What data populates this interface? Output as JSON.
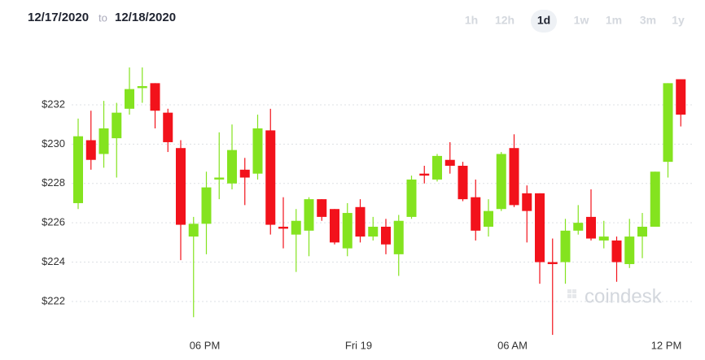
{
  "header": {
    "from": "12/17/2020",
    "to": "to",
    "until": "12/18/2020",
    "ranges": [
      "1h",
      "12h",
      "1d",
      "1w",
      "1m",
      "3m",
      "1y"
    ],
    "selected_range": "1d"
  },
  "chart_data": {
    "type": "candlestick",
    "watermark": "coindesk",
    "categories": [
      null,
      null,
      null,
      null,
      null,
      null,
      null,
      null,
      null,
      null,
      "06 PM",
      null,
      null,
      null,
      null,
      null,
      null,
      null,
      null,
      null,
      null,
      null,
      "Fri 19",
      null,
      null,
      null,
      null,
      null,
      null,
      null,
      null,
      null,
      null,
      null,
      "06 AM",
      null,
      null,
      null,
      null,
      null,
      null,
      null,
      null,
      null,
      null,
      null,
      "12 PM",
      null
    ],
    "open": [
      227.0,
      230.2,
      229.5,
      230.3,
      231.8,
      232.85,
      233.1,
      231.6,
      229.8,
      225.3,
      225.95,
      228.2,
      228.0,
      228.7,
      228.5,
      230.7,
      225.8,
      225.4,
      225.6,
      227.2,
      226.7,
      224.7,
      226.8,
      225.3,
      225.8,
      224.4,
      226.3,
      228.5,
      228.2,
      229.2,
      228.9,
      227.3,
      225.8,
      226.7,
      229.8,
      227.5,
      227.5,
      224.0,
      224.0,
      225.6,
      226.3,
      225.1,
      225.1,
      223.9,
      225.3,
      225.8,
      229.1,
      233.3
    ],
    "high": [
      231.3,
      231.7,
      232.2,
      232.1,
      233.9,
      233.9,
      233.1,
      231.8,
      230.2,
      226.3,
      228.6,
      230.6,
      231.0,
      229.3,
      231.5,
      231.8,
      227.3,
      226.7,
      227.3,
      227.2,
      226.7,
      227.0,
      227.2,
      226.3,
      226.2,
      226.4,
      228.4,
      228.9,
      229.5,
      230.1,
      229.1,
      228.2,
      227.2,
      229.6,
      230.5,
      227.9,
      227.5,
      225.2,
      226.2,
      226.9,
      227.7,
      226.1,
      225.3,
      226.2,
      226.5,
      228.6,
      233.1,
      233.3
    ],
    "low": [
      226.7,
      228.7,
      228.8,
      228.3,
      231.5,
      232.1,
      230.8,
      229.6,
      224.1,
      221.2,
      224.4,
      227.2,
      227.7,
      226.9,
      228.2,
      225.4,
      224.7,
      223.5,
      224.3,
      226.1,
      224.9,
      224.3,
      225.0,
      225.1,
      224.4,
      223.3,
      226.2,
      228.0,
      228.1,
      228.5,
      227.1,
      225.1,
      225.3,
      226.6,
      226.8,
      225.0,
      222.9,
      220.3,
      222.9,
      225.4,
      225.1,
      224.7,
      223.0,
      223.7,
      224.2,
      225.8,
      228.3,
      230.9
    ],
    "close": [
      230.4,
      229.2,
      230.8,
      231.6,
      232.8,
      232.95,
      231.7,
      230.1,
      225.9,
      225.95,
      227.8,
      228.3,
      229.7,
      228.3,
      230.8,
      225.9,
      225.7,
      226.1,
      227.2,
      226.3,
      225.0,
      226.5,
      225.3,
      225.8,
      224.9,
      226.1,
      228.2,
      228.4,
      229.4,
      228.9,
      227.2,
      225.6,
      226.6,
      229.5,
      226.9,
      226.6,
      224.0,
      223.9,
      225.6,
      226.0,
      225.2,
      225.3,
      224.0,
      225.3,
      225.8,
      228.6,
      233.1,
      231.5
    ],
    "up_color": "#84e31f",
    "down_color": "#f2121b",
    "ylim": [
      219.2,
      234.4
    ],
    "yticks": [
      {
        "value": 222,
        "label": "$222"
      },
      {
        "value": 224,
        "label": "$224"
      },
      {
        "value": 226,
        "label": "$226"
      },
      {
        "value": 228,
        "label": "$228"
      },
      {
        "value": 230,
        "label": "$230"
      },
      {
        "value": 232,
        "label": "$232"
      }
    ],
    "grid": true
  }
}
